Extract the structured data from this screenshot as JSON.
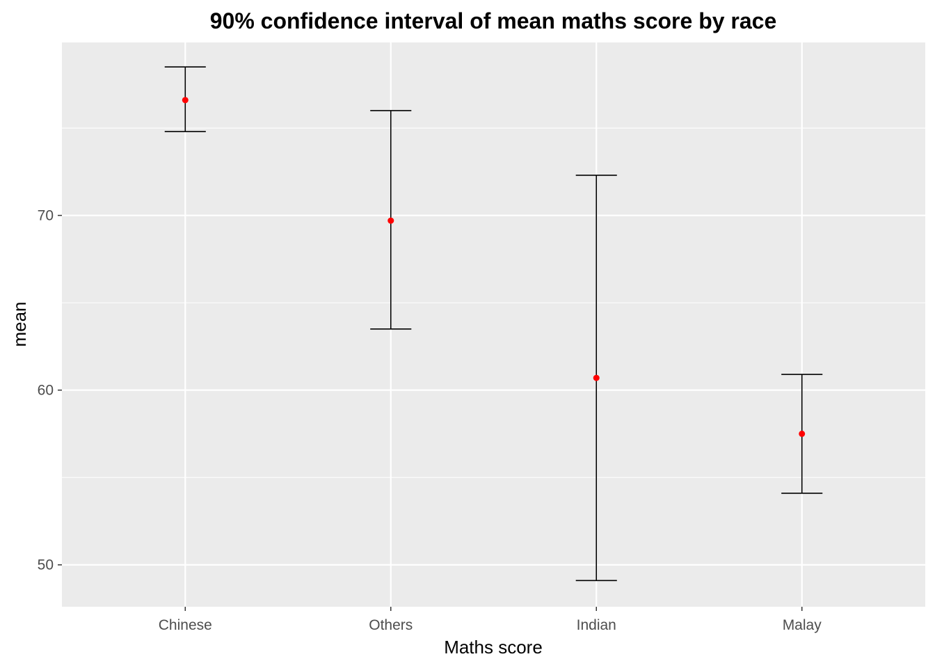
{
  "chart_data": {
    "type": "errorbar",
    "title": "90% confidence interval of mean maths score by race",
    "xlabel": "Maths score",
    "ylabel": "mean",
    "categories": [
      "Chinese",
      "Others",
      "Indian",
      "Malay"
    ],
    "series": [
      {
        "values": [
          76.6,
          69.7,
          60.7,
          57.5
        ],
        "lower": [
          74.8,
          63.5,
          49.1,
          54.1
        ],
        "upper": [
          78.5,
          76.0,
          72.3,
          60.9
        ]
      }
    ],
    "ylim": [
      47.6,
      79.9
    ],
    "yticks": [
      50,
      60,
      70
    ],
    "ytick_labels": [
      "50",
      "60",
      "70"
    ],
    "grid": true,
    "legend": "none",
    "colors": {
      "panel_background": "#ebebeb",
      "grid": "#ffffff",
      "point": "#ff0000",
      "errorbar": "#000000"
    }
  }
}
